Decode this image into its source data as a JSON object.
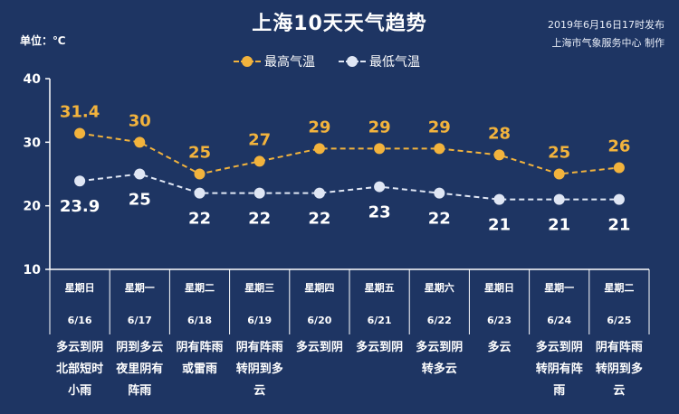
{
  "header": {
    "title": "上海10天天气趋势",
    "unit": "单位：℃",
    "publish_time": "2019年6月16日17时发布",
    "publisher": "上海市气象服务中心  制作"
  },
  "legend": {
    "high_label": "最高气温",
    "low_label": "最低气温"
  },
  "colors": {
    "background": "#1e3563",
    "high": "#f2b33d",
    "low": "#dfe6f4",
    "axis": "#ffffff"
  },
  "chart_data": {
    "type": "line",
    "title": "上海10天天气趋势",
    "ylabel": "单位：℃",
    "ylim": [
      10,
      40
    ],
    "yticks": [
      "10",
      "20",
      "30",
      "40"
    ],
    "weekdays": [
      "星期日",
      "星期一",
      "星期二",
      "星期三",
      "星期四",
      "星期五",
      "星期六",
      "星期日",
      "星期一",
      "星期二"
    ],
    "categories": [
      "6/16",
      "6/17",
      "6/18",
      "6/19",
      "6/20",
      "6/21",
      "6/22",
      "6/23",
      "6/24",
      "6/25"
    ],
    "series": [
      {
        "name": "最高气温",
        "values": [
          31.4,
          30,
          25,
          27,
          29,
          29,
          29,
          28,
          25,
          26
        ],
        "labels": [
          "31.4",
          "30",
          "25",
          "27",
          "29",
          "29",
          "29",
          "28",
          "25",
          "26"
        ]
      },
      {
        "name": "最低气温",
        "values": [
          23.9,
          25,
          22,
          22,
          22,
          23,
          22,
          21,
          21,
          21
        ],
        "labels": [
          "23.9",
          "25",
          "22",
          "22",
          "22",
          "23",
          "22",
          "21",
          "21",
          "21"
        ]
      }
    ],
    "conditions": [
      [
        "多云到阴",
        "北部短时",
        "小雨"
      ],
      [
        "阴到多云",
        "夜里阴有",
        "阵雨"
      ],
      [
        "阴有阵雨",
        "或雷雨"
      ],
      [
        "阴有阵雨",
        "转阴到多",
        "云"
      ],
      [
        "多云到阴"
      ],
      [
        "多云到阴"
      ],
      [
        "多云到阴",
        "转多云"
      ],
      [
        "多云"
      ],
      [
        "多云到阴",
        "转阴有阵",
        "雨"
      ],
      [
        "阴有阵雨",
        "转阴到多",
        "云"
      ]
    ]
  }
}
